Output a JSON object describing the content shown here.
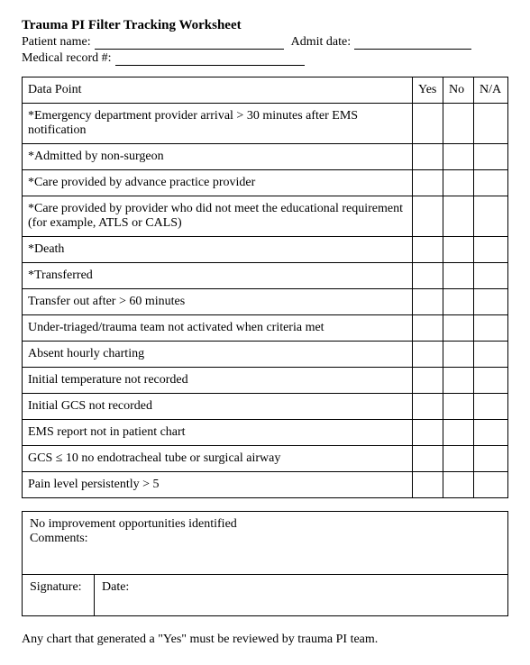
{
  "title": "Trauma PI Filter Tracking Worksheet",
  "header": {
    "patient_name_label": "Patient name:",
    "admit_date_label": "Admit date:",
    "medical_record_label": "Medical record #:"
  },
  "table": {
    "columns": {
      "data_point": "Data Point",
      "yes": "Yes",
      "no": "No",
      "na": "N/A"
    },
    "rows": [
      "*Emergency department provider arrival > 30 minutes after EMS notification",
      "*Admitted by non-surgeon",
      "*Care provided by advance practice provider",
      "*Care provided by provider who did not meet the educational requirement (for example, ATLS or CALS)",
      "*Death",
      "*Transferred",
      "Transfer out after > 60 minutes",
      "Under-triaged/trauma team not activated when criteria met",
      "Absent hourly charting",
      "Initial temperature not recorded",
      "Initial GCS not recorded",
      "EMS report not in patient chart",
      "GCS ≤ 10 no endotracheal tube or surgical airway",
      "Pain level persistently > 5"
    ]
  },
  "comments": {
    "no_improvement": "No improvement opportunities identified",
    "comments_label": "Comments:",
    "signature_label": "Signature:",
    "date_label": "Date:"
  },
  "footnote": "Any chart that generated a \"Yes\" must be reviewed by trauma PI team."
}
